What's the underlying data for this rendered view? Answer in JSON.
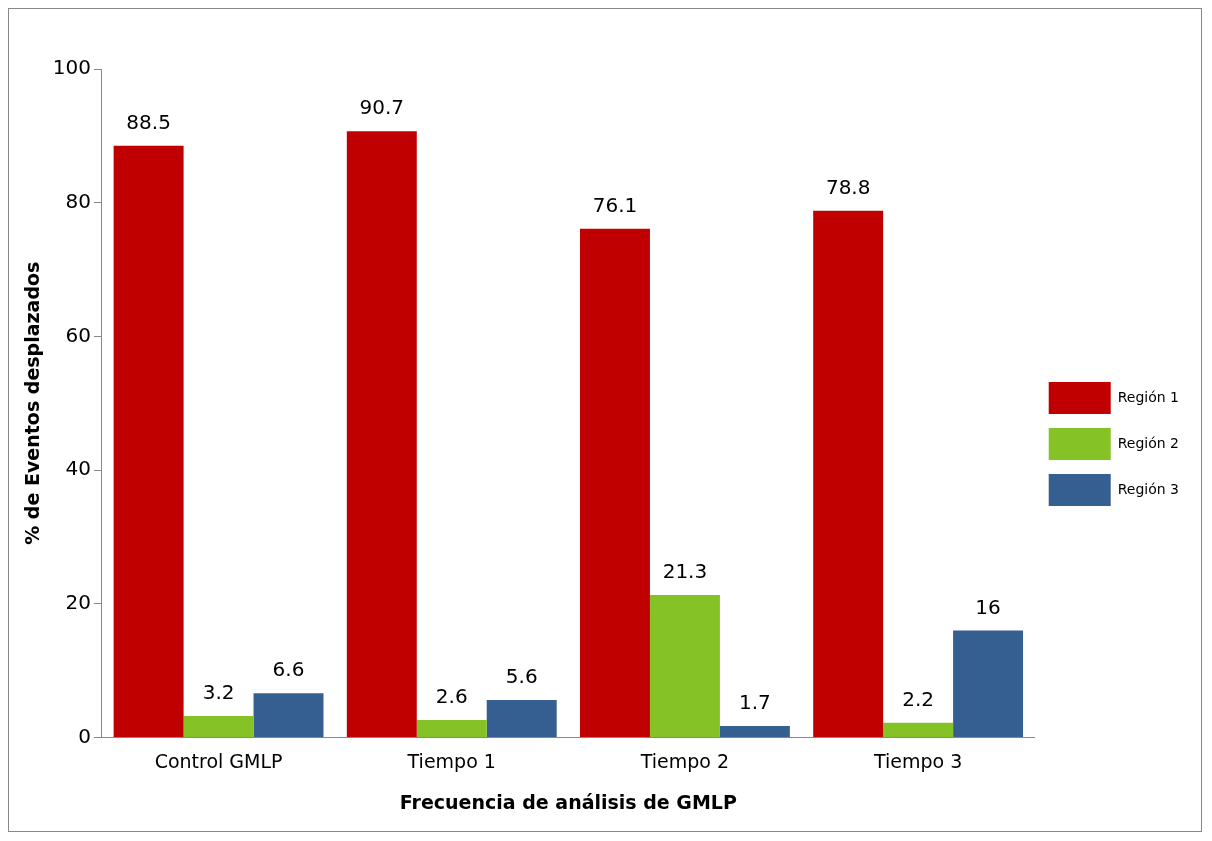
{
  "chart_data": {
    "type": "bar",
    "xlabel": "Frecuencia de análisis de GMLP",
    "ylabel": "% de Eventos desplazados",
    "categories": [
      "Control GMLP",
      "Tiempo 1",
      "Tiempo 2",
      "Tiempo 3"
    ],
    "series": [
      {
        "name": "Región 1",
        "color": "#c00000",
        "values": [
          88.5,
          90.7,
          76.1,
          78.8
        ]
      },
      {
        "name": "Región 2",
        "color": "#84c225",
        "values": [
          3.2,
          2.6,
          21.3,
          2.2
        ]
      },
      {
        "name": "Región 3",
        "color": "#365f91",
        "values": [
          6.6,
          5.6,
          1.7,
          16
        ]
      }
    ],
    "ylim": [
      0,
      100
    ],
    "yticks": [
      0,
      20,
      40,
      60,
      80,
      100
    ],
    "grid": false,
    "legend": "right",
    "data_labels": true
  }
}
